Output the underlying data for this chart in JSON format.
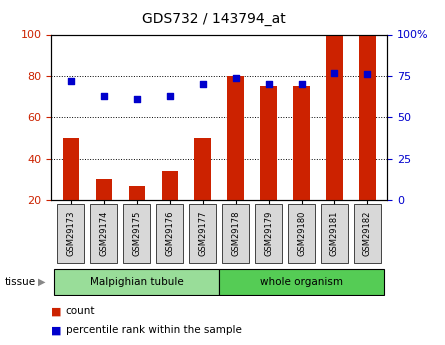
{
  "title": "GDS732 / 143794_at",
  "samples": [
    "GSM29173",
    "GSM29174",
    "GSM29175",
    "GSM29176",
    "GSM29177",
    "GSM29178",
    "GSM29179",
    "GSM29180",
    "GSM29181",
    "GSM29182"
  ],
  "bar_values": [
    50,
    30,
    27,
    34,
    50,
    80,
    75,
    75,
    100,
    100
  ],
  "dot_values": [
    72,
    63,
    61,
    63,
    70,
    74,
    70,
    70,
    77,
    76
  ],
  "bar_bottom": 20,
  "ylim_left": [
    20,
    100
  ],
  "ylim_right": [
    0,
    100
  ],
  "yticks_left": [
    20,
    40,
    60,
    80,
    100
  ],
  "ytick_labels_left": [
    "20",
    "40",
    "60",
    "80",
    "100"
  ],
  "yticks_right": [
    0,
    25,
    50,
    75,
    100
  ],
  "ytick_labels_right": [
    "0",
    "25",
    "50",
    "75",
    "100%"
  ],
  "bar_color": "#cc2200",
  "dot_color": "#0000cc",
  "tissue_groups": [
    {
      "label": "Malpighian tubule",
      "start": 0,
      "end": 4,
      "color": "#99dd99"
    },
    {
      "label": "whole organism",
      "start": 5,
      "end": 9,
      "color": "#55cc55"
    }
  ],
  "legend_items": [
    {
      "label": "count",
      "color": "#cc2200"
    },
    {
      "label": "percentile rank within the sample",
      "color": "#0000cc"
    }
  ],
  "plot_bg": "#ffffff",
  "tissue_label": "tissue"
}
